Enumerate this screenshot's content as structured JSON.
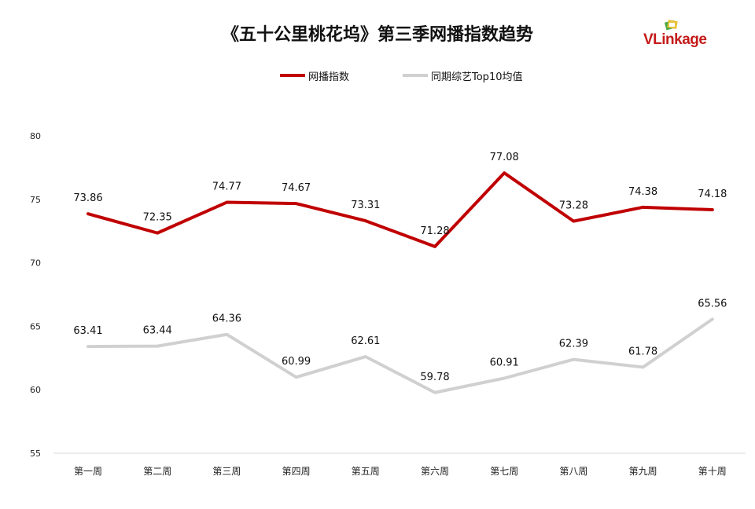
{
  "title": "《五十公里桃花坞》第三季网播指数趋势",
  "brand": {
    "logo_text": "VLinkage",
    "logo_mark_colors": [
      "#e7c33a",
      "#47a844",
      "#c41a1a"
    ]
  },
  "colors": {
    "series_1": "#c00000",
    "series_2": "#d0d0d0",
    "axis_line": "#d9d9d9"
  },
  "chart_data": {
    "type": "line",
    "title": "《五十公里桃花坞》第三季网播指数趋势",
    "categories": [
      "第一周",
      "第二周",
      "第三周",
      "第四周",
      "第五周",
      "第六周",
      "第七周",
      "第八周",
      "第九周",
      "第十周"
    ],
    "series": [
      {
        "name": "网播指数",
        "color": "#c00000",
        "values": [
          73.86,
          72.35,
          74.77,
          74.67,
          73.31,
          71.28,
          77.08,
          73.28,
          74.38,
          74.18
        ]
      },
      {
        "name": "同期综艺Top10均值",
        "color": "#d0d0d0",
        "values": [
          63.41,
          63.44,
          64.36,
          60.99,
          62.61,
          59.78,
          60.91,
          62.39,
          61.78,
          65.56
        ]
      }
    ],
    "ylim": [
      55,
      80
    ],
    "yticks": [
      55,
      60,
      65,
      70,
      75,
      80
    ],
    "xlabel": "",
    "ylabel": "",
    "grid": false,
    "legend": "top-center",
    "data_labels": true
  }
}
